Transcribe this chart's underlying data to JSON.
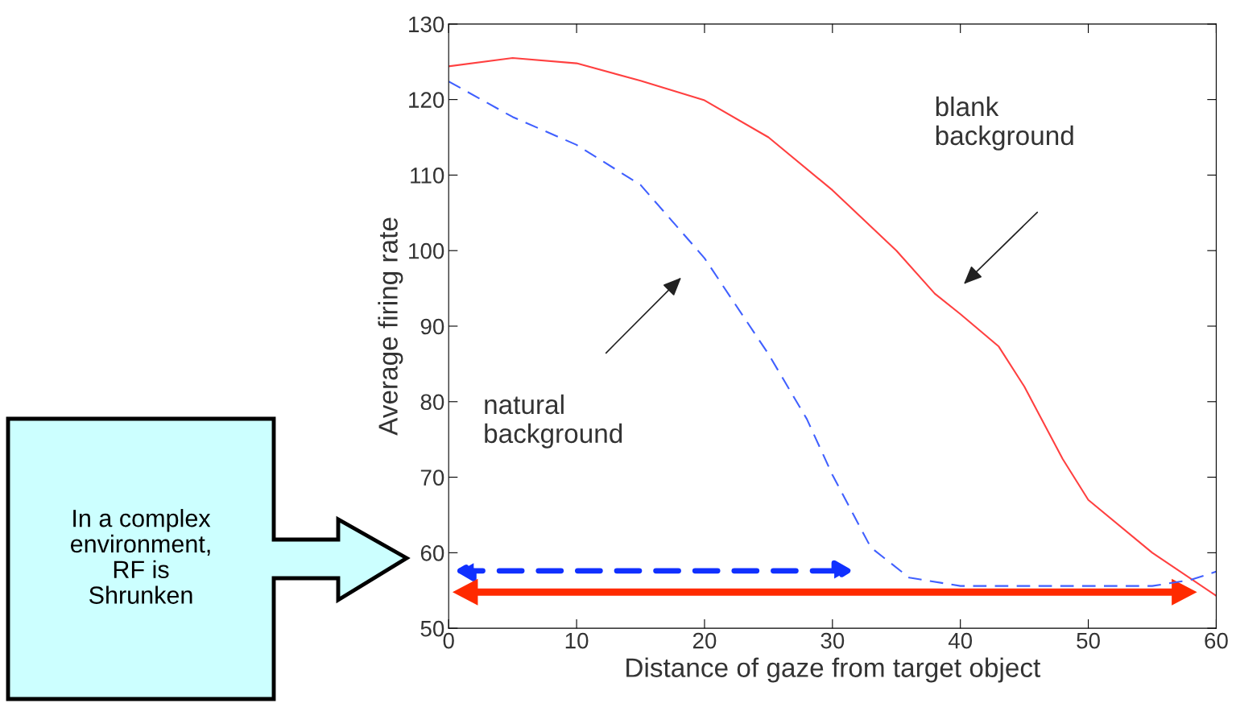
{
  "chart_data": {
    "type": "line",
    "xlabel": "Distance of gaze from target object",
    "ylabel": "Average firing rate",
    "xlim": [
      0,
      60
    ],
    "xticks": [
      0,
      10,
      20,
      30,
      40,
      50,
      60
    ],
    "ylim": [
      50,
      130
    ],
    "yticks": [
      50,
      60,
      70,
      80,
      90,
      100,
      110,
      120,
      130
    ],
    "grid": false,
    "legend": false,
    "series": [
      {
        "color": "#ff4040",
        "line_style": "solid",
        "x": [
          0,
          5,
          10,
          15,
          20,
          25,
          30,
          35,
          38,
          40,
          43,
          45,
          48,
          50,
          55,
          60
        ],
        "values": [
          124.4,
          125.5,
          124.8,
          122.5,
          119.9,
          115,
          108,
          100,
          94.3,
          91.6,
          87.3,
          82,
          72.4,
          67,
          60,
          54.3
        ]
      },
      {
        "color": "#4060ff",
        "line_style": "dashed",
        "x": [
          0,
          5,
          10,
          15,
          20,
          25,
          28,
          30,
          33,
          36,
          40,
          50,
          55,
          58,
          60
        ],
        "values": [
          122.4,
          117.7,
          114,
          108.7,
          99,
          86.3,
          77.7,
          70.3,
          60.7,
          56.7,
          55.6,
          55.6,
          55.6,
          56.4,
          57.5
        ]
      }
    ],
    "annotations": [
      "blank\nbackground",
      "natural\nbackground",
      "In a complex\nenvironment,\nRF is\nShrunken"
    ]
  }
}
